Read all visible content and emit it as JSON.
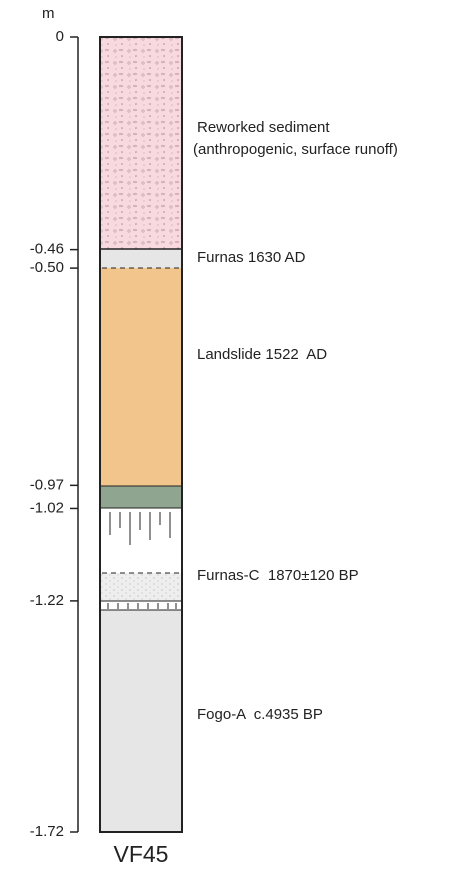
{
  "axis": {
    "unit": "m",
    "ticks": [
      0,
      {
        "value": -0.46,
        "label": "-0.46"
      },
      {
        "value": -0.5,
        "label": "-0.50"
      },
      {
        "value": -0.97,
        "label": "-0.97"
      },
      {
        "value": -1.02,
        "label": "-1.02"
      },
      {
        "value": -1.22,
        "label": "-1.22"
      },
      {
        "value": -1.72,
        "label": "-1.72"
      }
    ]
  },
  "layers": [
    {
      "name": "Reworked sediment",
      "note": "(anthropogenic, surface runoff)"
    },
    {
      "name": "Furnas 1630 AD"
    },
    {
      "name": "Landslide 1522  AD"
    },
    {
      "name": "Furnas-C  1870±120 BP"
    },
    {
      "name": "Fogo-A  c.4935 BP"
    }
  ],
  "column": "VF45"
}
